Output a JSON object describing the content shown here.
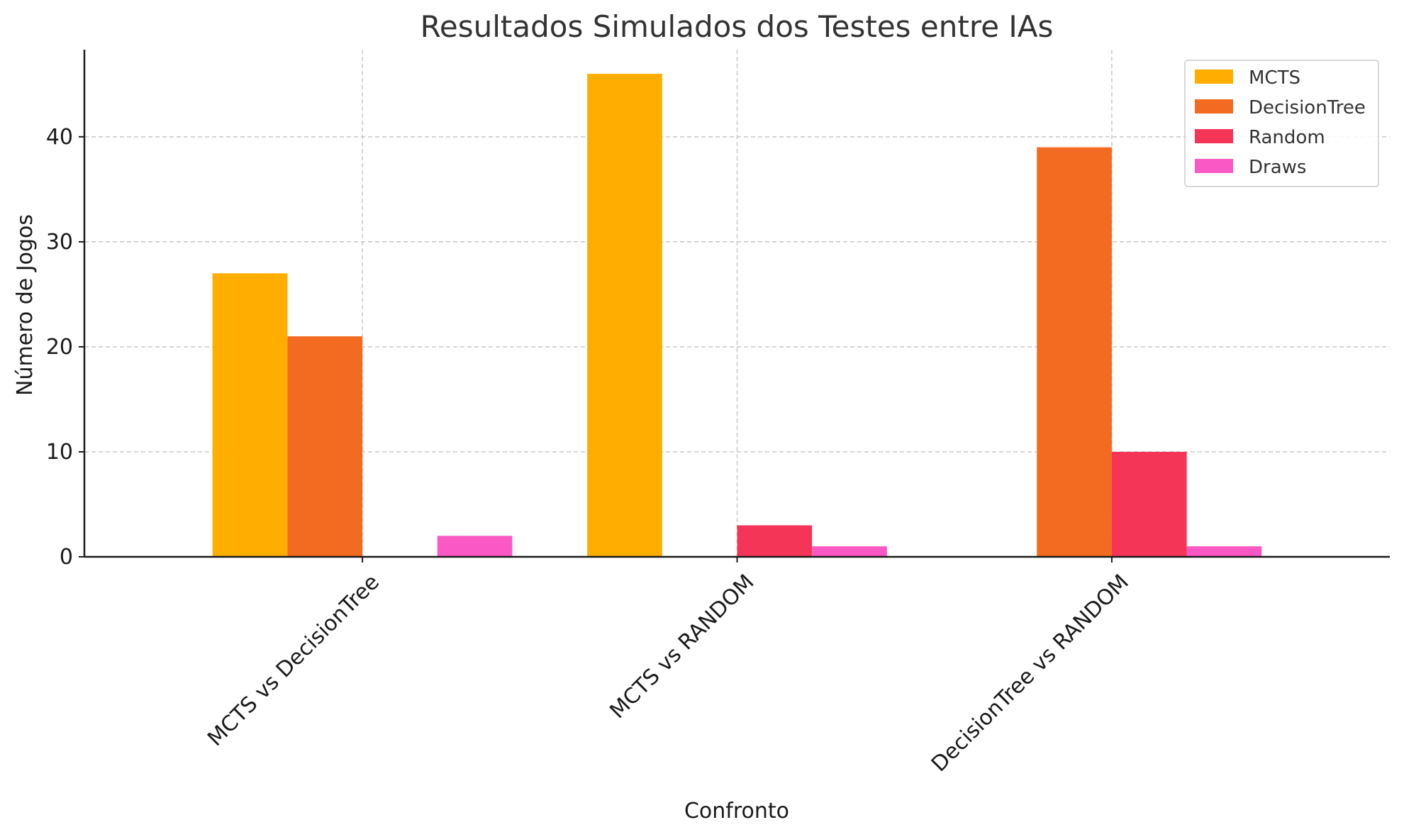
{
  "chart_data": {
    "type": "bar",
    "title": "Resultados Simulados dos Testes entre IAs",
    "xlabel": "Confronto",
    "ylabel": "Número de Jogos",
    "categories": [
      "MCTS vs DecisionTree",
      "MCTS vs RANDOM",
      "DecisionTree vs RANDOM"
    ],
    "series": [
      {
        "name": "MCTS",
        "color": "#FFAE00",
        "values": [
          27,
          46,
          0
        ]
      },
      {
        "name": "DecisionTree",
        "color": "#F26B21",
        "values": [
          21,
          0,
          39
        ]
      },
      {
        "name": "Random",
        "color": "#F43557",
        "values": [
          0,
          3,
          10
        ]
      },
      {
        "name": "Draws",
        "color": "#FA58C4",
        "values": [
          2,
          1,
          1
        ]
      }
    ],
    "ylim": [
      0,
      48.3
    ],
    "yticks": [
      0,
      10,
      20,
      30,
      40
    ],
    "grid": true,
    "legend_position": "top-right"
  }
}
